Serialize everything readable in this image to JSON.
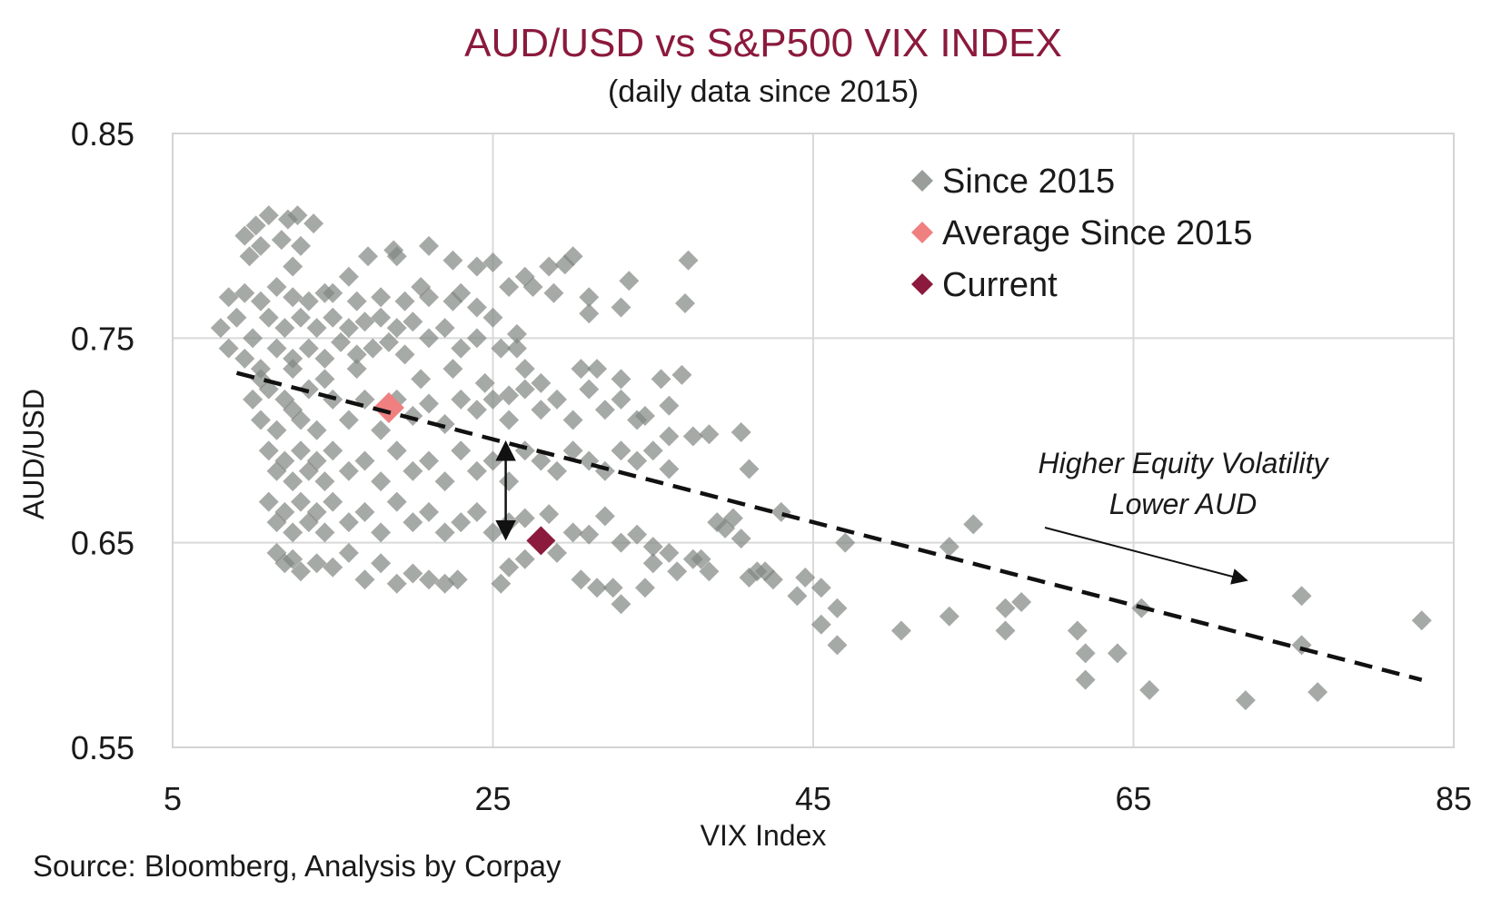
{
  "chart_data": {
    "type": "scatter",
    "title": "AUD/USD vs S&P500 VIX INDEX",
    "subtitle": "(daily data since 2015)",
    "xlabel": "VIX Index",
    "ylabel": "AUD/USD",
    "xlim": [
      5,
      85
    ],
    "ylim": [
      0.55,
      0.85
    ],
    "x_ticks": [
      "5",
      "25",
      "45",
      "65",
      "85"
    ],
    "y_ticks": [
      "0.85",
      "0.75",
      "0.65",
      "0.55"
    ],
    "grid": true,
    "legend_position": "top-right",
    "colors": {
      "since_2015": "#808682",
      "average": "#f08080",
      "current": "#8b1a3d",
      "trendline": "#111111"
    },
    "series": [
      {
        "name": "Since 2015",
        "points": [
          [
            9.5,
            0.8
          ],
          [
            9.8,
            0.79
          ],
          [
            10.2,
            0.805
          ],
          [
            11.0,
            0.81
          ],
          [
            12.2,
            0.808
          ],
          [
            12.8,
            0.81
          ],
          [
            13.8,
            0.806
          ],
          [
            10.5,
            0.795
          ],
          [
            11.8,
            0.798
          ],
          [
            13.0,
            0.795
          ],
          [
            17.2,
            0.79
          ],
          [
            18.8,
            0.793
          ],
          [
            19.0,
            0.79
          ],
          [
            21.0,
            0.795
          ],
          [
            22.5,
            0.788
          ],
          [
            24.0,
            0.785
          ],
          [
            25.0,
            0.787
          ],
          [
            27.0,
            0.78
          ],
          [
            28.5,
            0.785
          ],
          [
            29.5,
            0.786
          ],
          [
            30.0,
            0.79
          ],
          [
            27.5,
            0.775
          ],
          [
            31.0,
            0.77
          ],
          [
            31.0,
            0.762
          ],
          [
            33.5,
            0.778
          ],
          [
            33.0,
            0.765
          ],
          [
            37.2,
            0.788
          ],
          [
            37.0,
            0.767
          ],
          [
            26.0,
            0.775
          ],
          [
            28.8,
            0.772
          ],
          [
            23.0,
            0.772
          ],
          [
            20.5,
            0.775
          ],
          [
            16.0,
            0.78
          ],
          [
            14.5,
            0.772
          ],
          [
            12.5,
            0.785
          ],
          [
            8.0,
            0.755
          ],
          [
            8.5,
            0.745
          ],
          [
            9.0,
            0.76
          ],
          [
            9.5,
            0.74
          ],
          [
            10.0,
            0.75
          ],
          [
            10.5,
            0.735
          ],
          [
            11.0,
            0.76
          ],
          [
            11.5,
            0.745
          ],
          [
            12.0,
            0.755
          ],
          [
            12.5,
            0.74
          ],
          [
            13.0,
            0.76
          ],
          [
            13.5,
            0.745
          ],
          [
            14.0,
            0.755
          ],
          [
            14.5,
            0.74
          ],
          [
            15.0,
            0.76
          ],
          [
            15.5,
            0.748
          ],
          [
            16.0,
            0.755
          ],
          [
            16.5,
            0.742
          ],
          [
            17.0,
            0.758
          ],
          [
            17.5,
            0.745
          ],
          [
            18.0,
            0.76
          ],
          [
            18.5,
            0.748
          ],
          [
            19.0,
            0.755
          ],
          [
            19.5,
            0.742
          ],
          [
            20.0,
            0.758
          ],
          [
            21.0,
            0.75
          ],
          [
            22.0,
            0.755
          ],
          [
            23.0,
            0.745
          ],
          [
            24.0,
            0.75
          ],
          [
            25.5,
            0.745
          ],
          [
            8.5,
            0.77
          ],
          [
            9.5,
            0.772
          ],
          [
            10.5,
            0.768
          ],
          [
            11.5,
            0.775
          ],
          [
            12.5,
            0.77
          ],
          [
            13.5,
            0.768
          ],
          [
            15.0,
            0.772
          ],
          [
            16.5,
            0.768
          ],
          [
            18.0,
            0.77
          ],
          [
            19.5,
            0.768
          ],
          [
            21.0,
            0.77
          ],
          [
            22.5,
            0.768
          ],
          [
            24.0,
            0.765
          ],
          [
            25.0,
            0.76
          ],
          [
            26.5,
            0.752
          ],
          [
            10.0,
            0.72
          ],
          [
            10.5,
            0.71
          ],
          [
            11.0,
            0.725
          ],
          [
            11.5,
            0.705
          ],
          [
            12.0,
            0.72
          ],
          [
            12.5,
            0.715
          ],
          [
            13.0,
            0.71
          ],
          [
            13.5,
            0.725
          ],
          [
            14.0,
            0.705
          ],
          [
            15.0,
            0.72
          ],
          [
            16.0,
            0.71
          ],
          [
            17.0,
            0.72
          ],
          [
            18.0,
            0.705
          ],
          [
            19.0,
            0.72
          ],
          [
            20.0,
            0.712
          ],
          [
            21.0,
            0.718
          ],
          [
            22.0,
            0.708
          ],
          [
            23.0,
            0.72
          ],
          [
            24.0,
            0.715
          ],
          [
            25.0,
            0.72
          ],
          [
            26.0,
            0.71
          ],
          [
            27.0,
            0.725
          ],
          [
            28.0,
            0.715
          ],
          [
            29.0,
            0.72
          ],
          [
            30.0,
            0.71
          ],
          [
            31.0,
            0.725
          ],
          [
            32.0,
            0.715
          ],
          [
            33.0,
            0.72
          ],
          [
            34.0,
            0.71
          ],
          [
            31.5,
            0.735
          ],
          [
            33.0,
            0.73
          ],
          [
            35.5,
            0.73
          ],
          [
            36.8,
            0.732
          ],
          [
            36.0,
            0.717
          ],
          [
            37.5,
            0.702
          ],
          [
            38.5,
            0.703
          ],
          [
            36.0,
            0.702
          ],
          [
            34.5,
            0.712
          ],
          [
            30.5,
            0.735
          ],
          [
            28.0,
            0.728
          ],
          [
            27.0,
            0.735
          ],
          [
            26.5,
            0.745
          ],
          [
            10.5,
            0.73
          ],
          [
            12.5,
            0.735
          ],
          [
            14.5,
            0.73
          ],
          [
            16.5,
            0.735
          ],
          [
            20.5,
            0.73
          ],
          [
            22.5,
            0.735
          ],
          [
            24.5,
            0.728
          ],
          [
            26.0,
            0.722
          ],
          [
            11.0,
            0.695
          ],
          [
            11.5,
            0.685
          ],
          [
            12.0,
            0.69
          ],
          [
            12.5,
            0.68
          ],
          [
            13.0,
            0.695
          ],
          [
            13.5,
            0.685
          ],
          [
            14.0,
            0.69
          ],
          [
            14.5,
            0.68
          ],
          [
            15.0,
            0.695
          ],
          [
            16.0,
            0.685
          ],
          [
            17.0,
            0.69
          ],
          [
            18.0,
            0.68
          ],
          [
            19.0,
            0.695
          ],
          [
            20.0,
            0.685
          ],
          [
            21.0,
            0.69
          ],
          [
            22.0,
            0.68
          ],
          [
            23.0,
            0.695
          ],
          [
            24.0,
            0.685
          ],
          [
            25.0,
            0.69
          ],
          [
            26.0,
            0.68
          ],
          [
            27.0,
            0.695
          ],
          [
            28.0,
            0.69
          ],
          [
            29.0,
            0.685
          ],
          [
            30.0,
            0.695
          ],
          [
            31.0,
            0.69
          ],
          [
            32.0,
            0.685
          ],
          [
            33.0,
            0.695
          ],
          [
            34.0,
            0.69
          ],
          [
            35.0,
            0.695
          ],
          [
            36.0,
            0.686
          ],
          [
            40.5,
            0.704
          ],
          [
            41.0,
            0.686
          ],
          [
            11.0,
            0.67
          ],
          [
            11.5,
            0.66
          ],
          [
            12.0,
            0.665
          ],
          [
            12.5,
            0.655
          ],
          [
            13.0,
            0.67
          ],
          [
            13.5,
            0.66
          ],
          [
            14.0,
            0.665
          ],
          [
            14.5,
            0.655
          ],
          [
            15.0,
            0.67
          ],
          [
            16.0,
            0.66
          ],
          [
            17.0,
            0.665
          ],
          [
            18.0,
            0.655
          ],
          [
            19.0,
            0.67
          ],
          [
            20.0,
            0.66
          ],
          [
            21.0,
            0.665
          ],
          [
            22.0,
            0.655
          ],
          [
            23.0,
            0.66
          ],
          [
            24.0,
            0.665
          ],
          [
            25.0,
            0.655
          ],
          [
            26.0,
            0.66
          ],
          [
            27.0,
            0.662
          ],
          [
            28.5,
            0.664
          ],
          [
            30.0,
            0.655
          ],
          [
            31.0,
            0.654
          ],
          [
            32.0,
            0.663
          ],
          [
            33.0,
            0.65
          ],
          [
            34.0,
            0.654
          ],
          [
            35.0,
            0.648
          ],
          [
            11.5,
            0.645
          ],
          [
            12.0,
            0.64
          ],
          [
            12.5,
            0.642
          ],
          [
            13.0,
            0.636
          ],
          [
            14.0,
            0.64
          ],
          [
            15.0,
            0.638
          ],
          [
            16.0,
            0.645
          ],
          [
            17.0,
            0.632
          ],
          [
            18.0,
            0.64
          ],
          [
            19.0,
            0.63
          ],
          [
            20.0,
            0.635
          ],
          [
            21.0,
            0.632
          ],
          [
            22.0,
            0.63
          ],
          [
            22.8,
            0.632
          ],
          [
            25.5,
            0.63
          ],
          [
            26.0,
            0.638
          ],
          [
            27.0,
            0.642
          ],
          [
            29.0,
            0.645
          ],
          [
            30.5,
            0.632
          ],
          [
            31.5,
            0.628
          ],
          [
            32.5,
            0.628
          ],
          [
            33.0,
            0.62
          ],
          [
            34.5,
            0.628
          ],
          [
            35.0,
            0.64
          ],
          [
            36.0,
            0.645
          ],
          [
            36.5,
            0.636
          ],
          [
            37.5,
            0.642
          ],
          [
            38.0,
            0.642
          ],
          [
            38.5,
            0.636
          ],
          [
            39.0,
            0.66
          ],
          [
            39.5,
            0.657
          ],
          [
            40.0,
            0.662
          ],
          [
            40.5,
            0.652
          ],
          [
            41.0,
            0.633
          ],
          [
            41.5,
            0.636
          ],
          [
            42.0,
            0.636
          ],
          [
            42.5,
            0.632
          ],
          [
            43.0,
            0.665
          ],
          [
            44.0,
            0.624
          ],
          [
            44.5,
            0.633
          ],
          [
            45.5,
            0.61
          ],
          [
            45.5,
            0.628
          ],
          [
            46.5,
            0.618
          ],
          [
            46.5,
            0.6
          ],
          [
            47.0,
            0.65
          ],
          [
            50.5,
            0.607
          ],
          [
            53.5,
            0.614
          ],
          [
            53.5,
            0.648
          ],
          [
            55.0,
            0.659
          ],
          [
            57.0,
            0.607
          ],
          [
            57.0,
            0.618
          ],
          [
            58.0,
            0.621
          ],
          [
            61.5,
            0.607
          ],
          [
            62.0,
            0.583
          ],
          [
            62.0,
            0.596
          ],
          [
            64.0,
            0.596
          ],
          [
            65.5,
            0.618
          ],
          [
            66.0,
            0.578
          ],
          [
            72.0,
            0.573
          ],
          [
            75.5,
            0.624
          ],
          [
            75.5,
            0.6
          ],
          [
            76.5,
            0.577
          ],
          [
            83.0,
            0.612
          ]
        ]
      },
      {
        "name": "Average Since 2015",
        "points": [
          [
            18.5,
            0.716
          ]
        ]
      },
      {
        "name": "Current",
        "points": [
          [
            28.0,
            0.651
          ]
        ]
      }
    ],
    "trendline": {
      "from": [
        9.0,
        0.733
      ],
      "to": [
        83.0,
        0.583
      ]
    },
    "gap_arrow": {
      "x": 25.8,
      "y_from": 0.699,
      "y_to": 0.652
    },
    "annotation": {
      "line1": "Higher Equity Volatility",
      "line2": "Lower AUD"
    },
    "source": "Source: Bloomberg, Analysis by Corpay"
  }
}
